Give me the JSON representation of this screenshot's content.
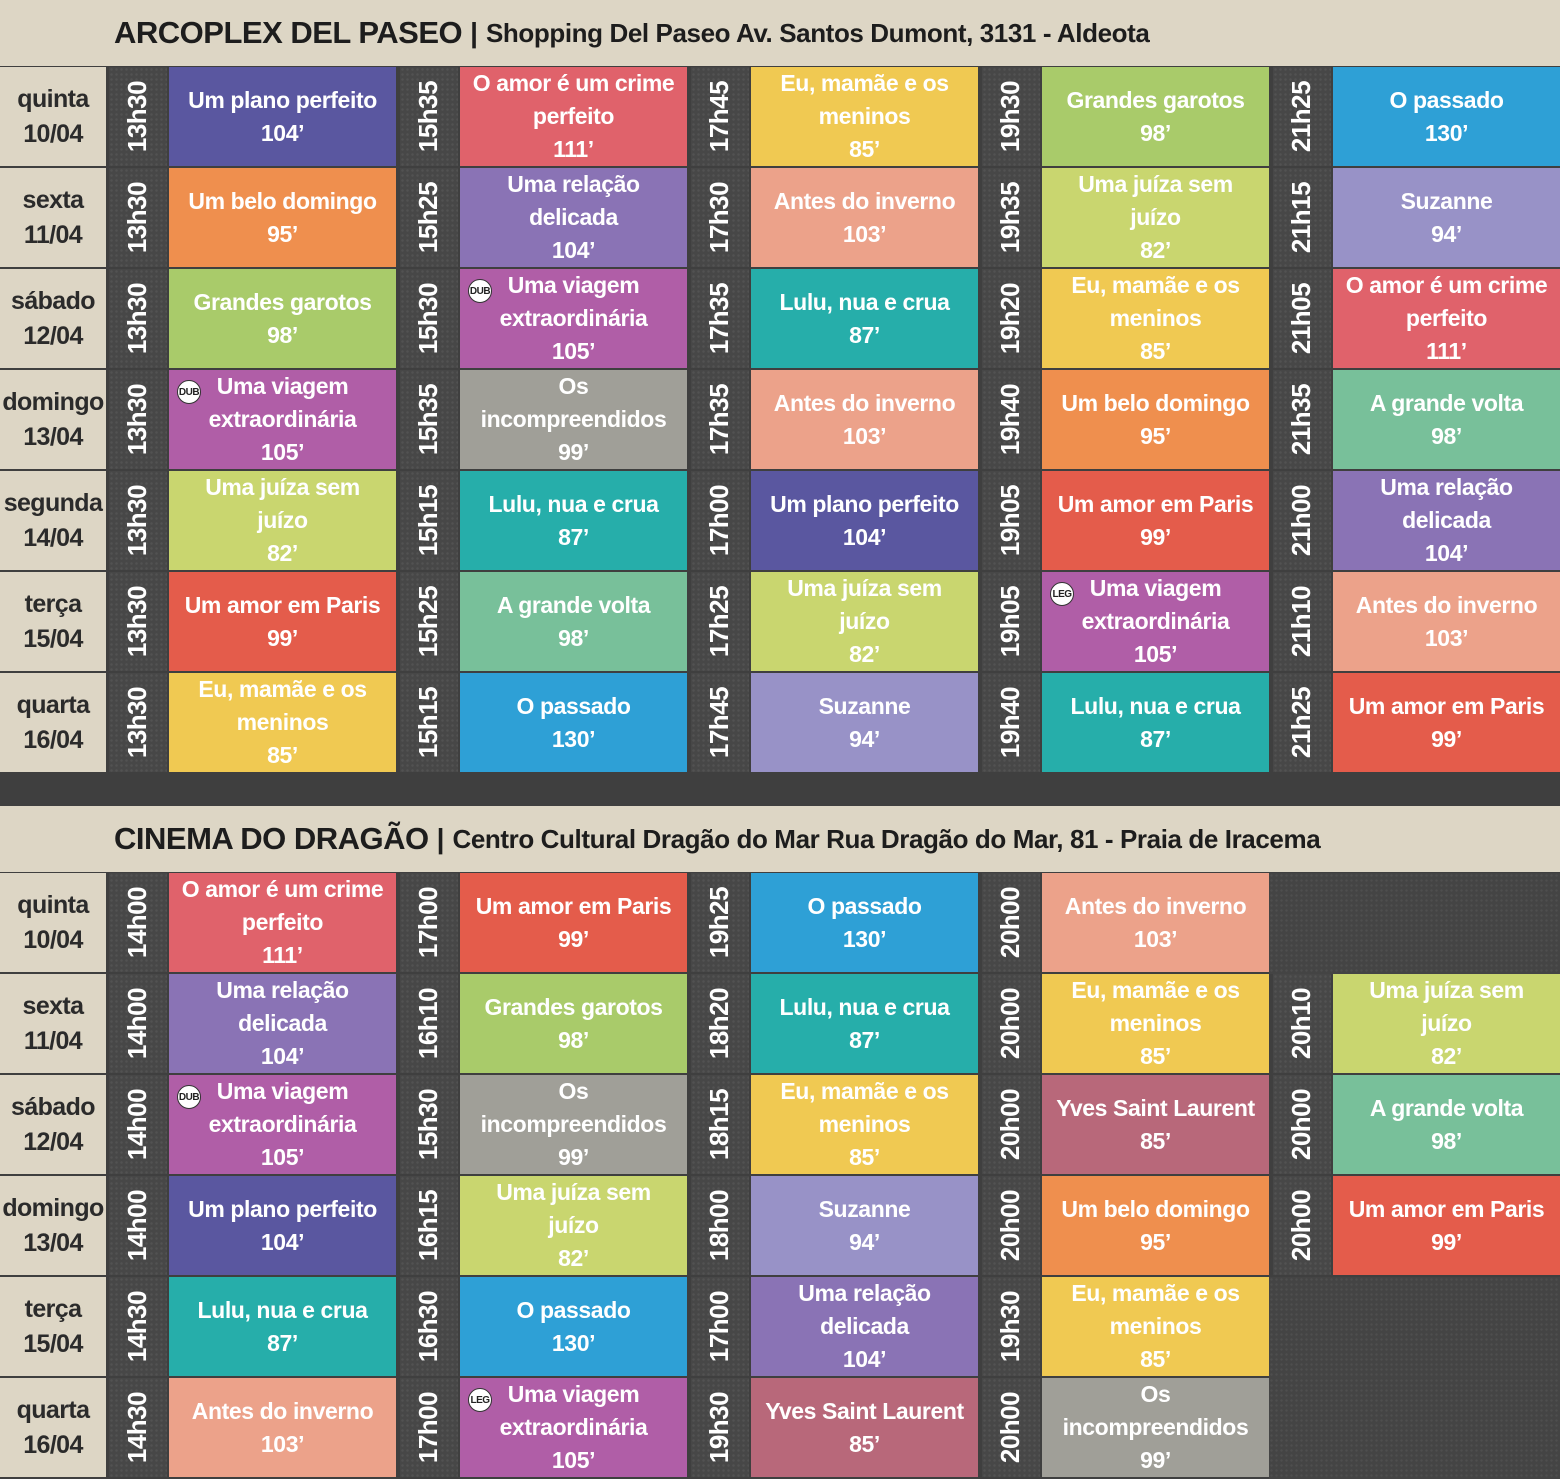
{
  "cinemas": [
    {
      "name": "ARCOPLEX DEL PASEO",
      "separator": "|",
      "address": "Shopping Del Paseo  Av. Santos Dumont, 3131 - Aldeota",
      "rows": [
        {
          "weekday": "quinta",
          "date": "10/04",
          "sessions": [
            {
              "time": "13h30",
              "title": "Um plano perfeito",
              "duration": "104’",
              "color": "#5a57a0"
            },
            {
              "time": "15h35",
              "title": "O amor é um crime perfeito",
              "duration": "111’",
              "color": "#e0626b"
            },
            {
              "time": "17h45",
              "title": "Eu, mamãe e os meninos",
              "duration": "85’",
              "color": "#f0c952"
            },
            {
              "time": "19h30",
              "title": "Grandes garotos",
              "duration": "98’",
              "color": "#a9cb6a"
            },
            {
              "time": "21h25",
              "title": "O passado",
              "duration": "130’",
              "color": "#2ea0d6"
            }
          ]
        },
        {
          "weekday": "sexta",
          "date": "11/04",
          "sessions": [
            {
              "time": "13h30",
              "title": "Um belo domingo",
              "duration": "95’",
              "color": "#ef8f4e"
            },
            {
              "time": "15h25",
              "title": "Uma relação delicada",
              "duration": "104’",
              "color": "#8a73b5"
            },
            {
              "time": "17h30",
              "title": "Antes do inverno",
              "duration": "103’",
              "color": "#eca28a"
            },
            {
              "time": "19h35",
              "title": "Uma juíza sem juízo",
              "duration": "82’",
              "color": "#c9d66f"
            },
            {
              "time": "21h15",
              "title": "Suzanne",
              "duration": "94’",
              "color": "#9892c7"
            }
          ]
        },
        {
          "weekday": "sábado",
          "date": "12/04",
          "sessions": [
            {
              "time": "13h30",
              "title": "Grandes garotos",
              "duration": "98’",
              "color": "#a9cb6a"
            },
            {
              "time": "15h30",
              "title": "Uma viagem extraordinária",
              "duration": "105’",
              "color": "#b05ea7",
              "badge": "DUB"
            },
            {
              "time": "17h35",
              "title": "Lulu, nua e crua",
              "duration": "87’",
              "color": "#26aeaa"
            },
            {
              "time": "19h20",
              "title": "Eu, mamãe e os meninos",
              "duration": "85’",
              "color": "#f0c952"
            },
            {
              "time": "21h05",
              "title": "O amor é um crime perfeito",
              "duration": "111’",
              "color": "#e0626b"
            }
          ]
        },
        {
          "weekday": "domingo",
          "date": "13/04",
          "sessions": [
            {
              "time": "13h30",
              "title": "Uma viagem extraordinária",
              "duration": "105’",
              "color": "#b05ea7",
              "badge": "DUB"
            },
            {
              "time": "15h35",
              "title": "Os incompreendidos",
              "duration": "99’",
              "color": "#a09f98"
            },
            {
              "time": "17h35",
              "title": "Antes do inverno",
              "duration": "103’",
              "color": "#eca28a"
            },
            {
              "time": "19h40",
              "title": "Um belo domingo",
              "duration": "95’",
              "color": "#ef8f4e"
            },
            {
              "time": "21h35",
              "title": "A grande volta",
              "duration": "98’",
              "color": "#78c09a"
            }
          ]
        },
        {
          "weekday": "segunda",
          "date": "14/04",
          "sessions": [
            {
              "time": "13h30",
              "title": "Uma juíza sem juízo",
              "duration": "82’",
              "color": "#c9d66f"
            },
            {
              "time": "15h15",
              "title": "Lulu, nua e crua",
              "duration": "87’",
              "color": "#26aeaa"
            },
            {
              "time": "17h00",
              "title": "Um plano perfeito",
              "duration": "104’",
              "color": "#5a57a0"
            },
            {
              "time": "19h05",
              "title": "Um amor em Paris",
              "duration": "99’",
              "color": "#e45c4b"
            },
            {
              "time": "21h00",
              "title": "Uma relação delicada",
              "duration": "104’",
              "color": "#8a73b5"
            }
          ]
        },
        {
          "weekday": "terça",
          "date": "15/04",
          "sessions": [
            {
              "time": "13h30",
              "title": "Um amor em Paris",
              "duration": "99’",
              "color": "#e45c4b"
            },
            {
              "time": "15h25",
              "title": "A grande volta",
              "duration": "98’",
              "color": "#78c09a"
            },
            {
              "time": "17h25",
              "title": "Uma juíza sem juízo",
              "duration": "82’",
              "color": "#c9d66f"
            },
            {
              "time": "19h05",
              "title": "Uma viagem extraordinária",
              "duration": "105’",
              "color": "#b05ea7",
              "badge": "LEG"
            },
            {
              "time": "21h10",
              "title": "Antes do inverno",
              "duration": "103’",
              "color": "#eca28a"
            }
          ]
        },
        {
          "weekday": "quarta",
          "date": "16/04",
          "sessions": [
            {
              "time": "13h30",
              "title": "Eu, mamãe e os meninos",
              "duration": "85’",
              "color": "#f0c952"
            },
            {
              "time": "15h15",
              "title": "O passado",
              "duration": "130’",
              "color": "#2ea0d6"
            },
            {
              "time": "17h45",
              "title": "Suzanne",
              "duration": "94’",
              "color": "#9892c7"
            },
            {
              "time": "19h40",
              "title": "Lulu, nua e crua",
              "duration": "87’",
              "color": "#26aeaa"
            },
            {
              "time": "21h25",
              "title": "Um amor em Paris",
              "duration": "99’",
              "color": "#e45c4b"
            }
          ]
        }
      ]
    },
    {
      "name": "CINEMA DO DRAGÃO",
      "separator": "|",
      "address": "Centro Cultural Dragão do Mar  Rua Dragão do Mar, 81 - Praia de Iracema",
      "rows": [
        {
          "weekday": "quinta",
          "date": "10/04",
          "sessions": [
            {
              "time": "14h00",
              "title": "O amor é um crime perfeito",
              "duration": "111’",
              "color": "#e0626b"
            },
            {
              "time": "17h00",
              "title": "Um amor em Paris",
              "duration": "99’",
              "color": "#e45c4b"
            },
            {
              "time": "19h25",
              "title": "O passado",
              "duration": "130’",
              "color": "#2ea0d6"
            },
            {
              "time": "20h00",
              "title": "Antes do inverno",
              "duration": "103’",
              "color": "#eca28a"
            }
          ]
        },
        {
          "weekday": "sexta",
          "date": "11/04",
          "sessions": [
            {
              "time": "14h00",
              "title": "Uma relação delicada",
              "duration": "104’",
              "color": "#8a73b5"
            },
            {
              "time": "16h10",
              "title": "Grandes garotos",
              "duration": "98’",
              "color": "#a9cb6a"
            },
            {
              "time": "18h20",
              "title": "Lulu, nua e crua",
              "duration": "87’",
              "color": "#26aeaa"
            },
            {
              "time": "20h00",
              "title": "Eu, mamãe e os meninos",
              "duration": "85’",
              "color": "#f0c952"
            },
            {
              "time": "20h10",
              "title": "Uma juíza sem juízo",
              "duration": "82’",
              "color": "#c9d66f"
            }
          ]
        },
        {
          "weekday": "sábado",
          "date": "12/04",
          "sessions": [
            {
              "time": "14h00",
              "title": "Uma viagem extraordinária",
              "duration": "105’",
              "color": "#b05ea7",
              "badge": "DUB"
            },
            {
              "time": "15h30",
              "title": "Os incompreendidos",
              "duration": "99’",
              "color": "#a09f98"
            },
            {
              "time": "18h15",
              "title": "Eu, mamãe e os meninos",
              "duration": "85’",
              "color": "#f0c952"
            },
            {
              "time": "20h00",
              "title": "Yves Saint Laurent",
              "duration": "85’",
              "color": "#b8687a"
            },
            {
              "time": "20h00",
              "title": "A grande volta",
              "duration": "98’",
              "color": "#78c09a"
            }
          ]
        },
        {
          "weekday": "domingo",
          "date": "13/04",
          "sessions": [
            {
              "time": "14h00",
              "title": "Um plano perfeito",
              "duration": "104’",
              "color": "#5a57a0"
            },
            {
              "time": "16h15",
              "title": "Uma juíza sem juízo",
              "duration": "82’",
              "color": "#c9d66f"
            },
            {
              "time": "18h00",
              "title": "Suzanne",
              "duration": "94’",
              "color": "#9892c7"
            },
            {
              "time": "20h00",
              "title": "Um belo domingo",
              "duration": "95’",
              "color": "#ef8f4e"
            },
            {
              "time": "20h00",
              "title": "Um amor em Paris",
              "duration": "99’",
              "color": "#e45c4b"
            }
          ]
        },
        {
          "weekday": "terça",
          "date": "15/04",
          "sessions": [
            {
              "time": "14h30",
              "title": "Lulu, nua e crua",
              "duration": "87’",
              "color": "#26aeaa"
            },
            {
              "time": "16h30",
              "title": "O passado",
              "duration": "130’",
              "color": "#2ea0d6"
            },
            {
              "time": "17h00",
              "title": "Uma relação delicada",
              "duration": "104’",
              "color": "#8a73b5"
            },
            {
              "time": "19h30",
              "title": "Eu, mamãe e os meninos",
              "duration": "85’",
              "color": "#f0c952"
            }
          ]
        },
        {
          "weekday": "quarta",
          "date": "16/04",
          "sessions": [
            {
              "time": "14h30",
              "title": "Antes do inverno",
              "duration": "103’",
              "color": "#eca28a"
            },
            {
              "time": "17h00",
              "title": "Uma viagem extraordinária",
              "duration": "105’",
              "color": "#b05ea7",
              "badge": "LEG"
            },
            {
              "time": "19h30",
              "title": "Yves Saint Laurent",
              "duration": "85’",
              "color": "#b8687a"
            },
            {
              "time": "20h00",
              "title": "Os incompreendidos",
              "duration": "99’",
              "color": "#a09f98"
            }
          ]
        }
      ]
    }
  ]
}
